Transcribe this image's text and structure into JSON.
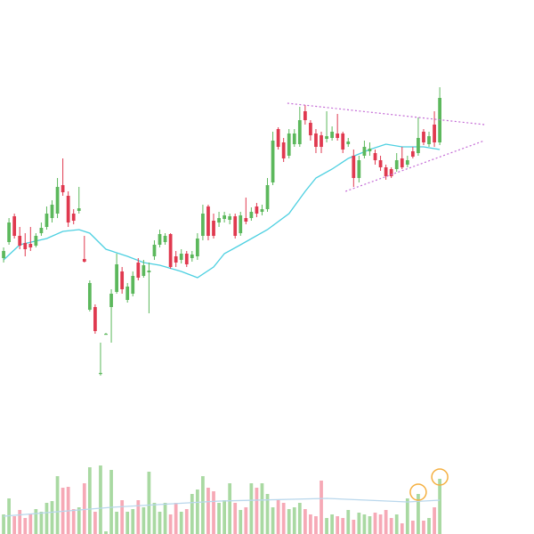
{
  "chart_data": {
    "type": "candlestick",
    "xlim": [
      -0.67,
      98.5
    ],
    "ylim": [
      0,
      600
    ],
    "y2lim": [
      0,
      600
    ],
    "up_color": "#5cb85c",
    "down_color": "#e0394f",
    "volume_up_color": "#a9d9a2",
    "volume_down_color": "#f6a9b6",
    "open": [
      310,
      328,
      357,
      335,
      327,
      326,
      324,
      338,
      345,
      355,
      360,
      392,
      380,
      360,
      363,
      309,
      252,
      255,
      180,
      224,
      255,
      272,
      295,
      263,
      270,
      305,
      290,
      294,
      312,
      325,
      328,
      337,
      312,
      308,
      315,
      310,
      312,
      335,
      368,
      352,
      350,
      354,
      353,
      357,
      338,
      355,
      355,
      368,
      362,
      365,
      395,
      455,
      440,
      425,
      438,
      438,
      475,
      462,
      450,
      448,
      444,
      445,
      450,
      450,
      438,
      425,
      400,
      425,
      430,
      428,
      420,
      412,
      410,
      410,
      422,
      415,
      430,
      428,
      452,
      438,
      460,
      440
    ],
    "high": [
      322,
      355,
      360,
      345,
      338,
      345,
      338,
      350,
      368,
      375,
      400,
      422,
      385,
      365,
      390,
      335,
      285,
      258,
      215,
      226,
      275,
      315,
      300,
      282,
      295,
      310,
      308,
      305,
      330,
      342,
      338,
      338,
      318,
      320,
      318,
      318,
      338,
      370,
      370,
      360,
      362,
      362,
      360,
      360,
      362,
      378,
      367,
      372,
      370,
      400,
      452,
      457,
      445,
      455,
      455,
      480,
      482,
      465,
      455,
      452,
      475,
      458,
      472,
      452,
      445,
      432,
      425,
      442,
      440,
      432,
      425,
      415,
      412,
      428,
      435,
      425,
      435,
      468,
      455,
      452,
      475,
      502
    ],
    "low": [
      305,
      325,
      332,
      320,
      312,
      318,
      322,
      335,
      342,
      350,
      355,
      380,
      345,
      348,
      360,
      305,
      250,
      225,
      178,
      224,
      215,
      270,
      270,
      260,
      267,
      285,
      288,
      248,
      308,
      322,
      325,
      298,
      300,
      304,
      300,
      306,
      308,
      330,
      330,
      332,
      345,
      350,
      348,
      332,
      335,
      348,
      352,
      356,
      358,
      362,
      392,
      432,
      418,
      422,
      435,
      435,
      460,
      442,
      428,
      428,
      440,
      442,
      442,
      428,
      435,
      390,
      395,
      422,
      425,
      415,
      408,
      398,
      400,
      407,
      410,
      412,
      422,
      425,
      437,
      435,
      435,
      437
    ],
    "close": [
      318,
      350,
      335,
      324,
      320,
      322,
      335,
      344,
      360,
      370,
      390,
      384,
      350,
      352,
      366,
      306,
      282,
      228,
      181,
      225,
      270,
      303,
      275,
      278,
      290,
      288,
      302,
      296,
      325,
      337,
      335,
      300,
      305,
      315,
      303,
      314,
      332,
      360,
      335,
      335,
      355,
      358,
      357,
      335,
      358,
      351,
      362,
      360,
      365,
      392,
      442,
      435,
      422,
      450,
      450,
      465,
      465,
      448,
      435,
      435,
      447,
      452,
      445,
      432,
      441,
      400,
      420,
      435,
      433,
      420,
      412,
      402,
      402,
      420,
      412,
      420,
      424,
      445,
      440,
      447,
      440,
      490
    ],
    "volume": [
      22,
      40,
      20,
      27,
      18,
      22,
      28,
      25,
      35,
      37,
      65,
      52,
      53,
      28,
      30,
      57,
      75,
      25,
      77,
      3,
      72,
      25,
      38,
      25,
      28,
      38,
      30,
      70,
      35,
      25,
      35,
      22,
      35,
      25,
      28,
      45,
      50,
      65,
      52,
      48,
      35,
      38,
      57,
      35,
      27,
      30,
      57,
      52,
      57,
      45,
      30,
      38,
      35,
      28,
      30,
      35,
      28,
      22,
      20,
      60,
      18,
      22,
      20,
      18,
      27,
      16,
      24,
      22,
      20,
      24,
      22,
      27,
      18,
      22,
      12,
      40,
      15,
      45,
      15,
      18,
      30,
      62
    ],
    "ma": {
      "color": "#4dd0e1",
      "x": [
        0,
        3,
        8,
        11,
        14,
        16,
        19,
        23,
        26,
        29,
        33,
        36,
        39,
        41,
        44,
        49,
        53,
        56,
        58,
        61,
        64,
        68,
        71,
        74,
        78,
        81
      ],
      "values": [
        308,
        325,
        332,
        340,
        342,
        338,
        320,
        312,
        305,
        302,
        295,
        288,
        300,
        315,
        325,
        342,
        360,
        385,
        400,
        410,
        422,
        432,
        438,
        435,
        435,
        432
      ]
    },
    "volume_ma": {
      "color": "#b9d7ec",
      "x": [
        0,
        20,
        40,
        60,
        75,
        81
      ],
      "values": [
        20,
        30,
        37,
        40,
        36,
        38
      ]
    },
    "trendlines": {
      "color": "#c46bd6",
      "lines": [
        {
          "x": [
            52.7,
            89.3
          ],
          "values": [
            484,
            460
          ]
        },
        {
          "x": [
            63.5,
            89.3
          ],
          "values": [
            385,
            442
          ]
        }
      ]
    },
    "highlights": {
      "color": "#f5b041",
      "indices": [
        77,
        81
      ]
    }
  }
}
